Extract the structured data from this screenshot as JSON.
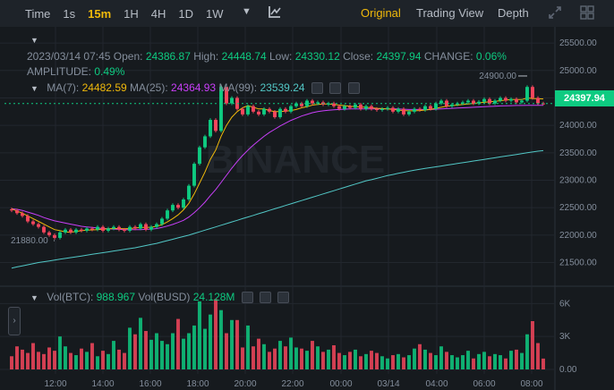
{
  "toolbar": {
    "timeframes": [
      {
        "label": "Time"
      },
      {
        "label": "1s"
      },
      {
        "label": "15m",
        "active": true
      },
      {
        "label": "1H"
      },
      {
        "label": "4H"
      },
      {
        "label": "1D"
      },
      {
        "label": "1W"
      }
    ],
    "views": {
      "original": "Original",
      "trading_view": "Trading View",
      "depth": "Depth"
    }
  },
  "ohlc": {
    "datetime": "2023/03/14 07:45",
    "open_label": "Open:",
    "open": "24386.87",
    "high_label": "High:",
    "high": "24448.74",
    "low_label": "Low:",
    "low": "24330.12",
    "close_label": "Close:",
    "close": "24397.94",
    "change_label": "CHANGE:",
    "change": "0.06%",
    "amplitude_label": "AMPLITUDE:",
    "amplitude": "0.49%"
  },
  "ma": {
    "ma7_label": "MA(7):",
    "ma7": "24482.59",
    "ma25_label": "MA(25):",
    "ma25": "24364.93",
    "ma99_label": "MA(99):",
    "ma99": "23539.24"
  },
  "vol": {
    "btc_label": "Vol(BTC):",
    "btc": "988.967",
    "busd_label": "Vol(BUSD)",
    "busd": "24.128M"
  },
  "markers": {
    "high": "24900.00",
    "low": "21880.00"
  },
  "current_price": "24397.94",
  "watermark": "BINANCE",
  "colors": {
    "up": "#0ecb81",
    "down": "#f6465d",
    "ma7": "#f0b90b",
    "ma25": "#c93ff9",
    "ma99": "#52c7c6"
  },
  "chart_data": {
    "type": "candlestick",
    "price_ticks": [
      "25500.00",
      "25000.00",
      "24500.00",
      "24000.00",
      "23500.00",
      "23000.00",
      "22500.00",
      "22000.00",
      "21500.00"
    ],
    "price_range": [
      21150,
      25600
    ],
    "volume_ticks": [
      "6K",
      "3K",
      "0.00"
    ],
    "volume_range": [
      0,
      6600
    ],
    "time_ticks": [
      "12:00",
      "14:00",
      "16:00",
      "18:00",
      "20:00",
      "22:00",
      "00:00",
      "03/14",
      "04:00",
      "06:00",
      "08:00"
    ],
    "candles_close": [
      22450,
      22400,
      22350,
      22250,
      22200,
      22150,
      22050,
      22000,
      21950,
      22050,
      22100,
      22050,
      22100,
      22080,
      22120,
      22100,
      22150,
      22080,
      22120,
      22150,
      22100,
      22080,
      22150,
      22120,
      22200,
      22100,
      22150,
      22200,
      22300,
      22450,
      22550,
      22500,
      22650,
      22900,
      23300,
      23600,
      23800,
      24100,
      23900,
      24700,
      24400,
      24500,
      24300,
      24200,
      24350,
      24250,
      24200,
      24300,
      24250,
      24150,
      24300,
      24250,
      24350,
      24400,
      24350,
      24450,
      24400,
      24420,
      24380,
      24400,
      24350,
      24300,
      24350,
      24320,
      24380,
      24300,
      24350,
      24300,
      24280,
      24300,
      24320,
      24250,
      24300,
      24200,
      24250,
      24300,
      24280,
      24350,
      24300,
      24400,
      24450,
      24350,
      24380,
      24400,
      24420,
      24450,
      24400,
      24430,
      24480,
      24400,
      24450,
      24500,
      24450,
      24480,
      24420,
      24450,
      24700,
      24500,
      24400,
      24397.94
    ],
    "ma7": [
      22480,
      22440,
      22400,
      22350,
      22300,
      22250,
      22200,
      22150,
      22100,
      22080,
      22060,
      22050,
      22070,
      22080,
      22090,
      22095,
      22100,
      22110,
      22115,
      22120,
      22120,
      22115,
      22120,
      22130,
      22140,
      22140,
      22145,
      22160,
      22190,
      22240,
      22300,
      22370,
      22460,
      22580,
      22750,
      22950,
      23150,
      23380,
      23550,
      23800,
      24000,
      24150,
      24250,
      24320,
      24360,
      24330,
      24300,
      24300,
      24270,
      24250,
      24250,
      24260,
      24270,
      24290,
      24320,
      24340,
      24370,
      24380,
      24390,
      24390,
      24380,
      24370,
      24360,
      24350,
      24340,
      24335,
      24330,
      24320,
      24310,
      24305,
      24300,
      24290,
      24280,
      24270,
      24265,
      24265,
      24270,
      24280,
      24290,
      24310,
      24330,
      24350,
      24360,
      24370,
      24380,
      24390,
      24400,
      24410,
      24420,
      24430,
      24440,
      24450,
      24460,
      24470,
      24470,
      24470,
      24500,
      24490,
      24485,
      24482.59
    ],
    "ma25": [
      22480,
      22470,
      22450,
      22420,
      22390,
      22360,
      22320,
      22290,
      22260,
      22240,
      22220,
      22200,
      22180,
      22160,
      22150,
      22140,
      22130,
      22120,
      22115,
      22110,
      22105,
      22100,
      22100,
      22100,
      22100,
      22105,
      22110,
      22120,
      22140,
      22165,
      22195,
      22230,
      22270,
      22330,
      22410,
      22500,
      22600,
      22720,
      22830,
      22960,
      23090,
      23220,
      23340,
      23450,
      23550,
      23640,
      23720,
      23800,
      23870,
      23930,
      23990,
      24040,
      24090,
      24130,
      24170,
      24200,
      24230,
      24250,
      24265,
      24275,
      24285,
      24290,
      24295,
      24300,
      24300,
      24300,
      24300,
      24300,
      24300,
      24300,
      24300,
      24300,
      24300,
      24295,
      24290,
      24290,
      24290,
      24290,
      24290,
      24295,
      24300,
      24305,
      24310,
      24315,
      24320,
      24325,
      24330,
      24335,
      24340,
      24345,
      24350,
      24355,
      24358,
      24360,
      24362,
      24363,
      24364,
      24364,
      24364,
      24364.93
    ],
    "ma99": [
      21400,
      21420,
      21440,
      21460,
      21480,
      21500,
      21515,
      21530,
      21545,
      21560,
      21575,
      21590,
      21605,
      21620,
      21635,
      21650,
      21665,
      21680,
      21695,
      21710,
      21725,
      21740,
      21755,
      21770,
      21790,
      21810,
      21830,
      21850,
      21875,
      21900,
      21925,
      21950,
      21975,
      22000,
      22030,
      22060,
      22090,
      22120,
      22150,
      22180,
      22210,
      22240,
      22270,
      22300,
      22330,
      22360,
      22390,
      22420,
      22450,
      22480,
      22510,
      22540,
      22570,
      22600,
      22630,
      22660,
      22690,
      22720,
      22750,
      22780,
      22810,
      22840,
      22870,
      22900,
      22930,
      22960,
      22990,
      23010,
      23035,
      23060,
      23085,
      23105,
      23125,
      23145,
      23165,
      23185,
      23200,
      23215,
      23230,
      23245,
      23260,
      23275,
      23290,
      23305,
      23320,
      23335,
      23350,
      23365,
      23380,
      23395,
      23410,
      23425,
      23440,
      23455,
      23470,
      23485,
      23500,
      23515,
      23530,
      23539.24
    ],
    "volume": [
      1200,
      2100,
      1800,
      1500,
      2400,
      1600,
      1400,
      2000,
      1700,
      3000,
      2100,
      1500,
      1300,
      1900,
      1600,
      2400,
      1200,
      1700,
      1400,
      2600,
      1800,
      1500,
      3800,
      3200,
      4700,
      3500,
      2700,
      3300,
      2600,
      2300,
      3300,
      4600,
      2800,
      3300,
      4000,
      6200,
      3700,
      5000,
      6400,
      5400,
      3300,
      4500,
      4500,
      2000,
      4000,
      2100,
      2800,
      2300,
      1600,
      1900,
      2600,
      2100,
      2900,
      2000,
      1900,
      1700,
      2600,
      2100,
      1600,
      1800,
      2200,
      1500,
      1300,
      1600,
      1800,
      1200,
      1400,
      1700,
      1500,
      1200,
      1000,
      1300,
      1400,
      1100,
      1300,
      1900,
      2300,
      1800,
      1500,
      1300,
      2100,
      1600,
      1300,
      1100,
      1300,
      1700,
      1000,
      1400,
      1600,
      1200,
      1400,
      1300,
      1000,
      1700,
      1800,
      1500,
      3200,
      4400,
      2400,
      988.967
    ]
  }
}
